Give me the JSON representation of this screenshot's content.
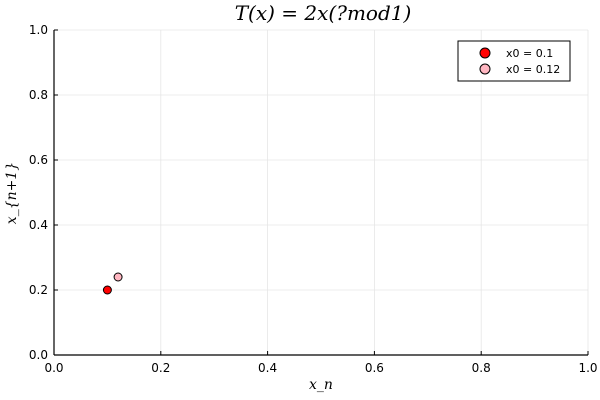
{
  "chart_data": {
    "type": "scatter",
    "title": "T(x) = 2x(?mod1)",
    "xlabel": "x_n",
    "ylabel": "x_{n+1}",
    "xlim": [
      0,
      1
    ],
    "ylim": [
      0,
      1
    ],
    "xticks": [
      0.0,
      0.2,
      0.4,
      0.6,
      0.8,
      1.0
    ],
    "yticks": [
      0.0,
      0.2,
      0.4,
      0.6,
      0.8,
      1.0
    ],
    "xtick_labels": [
      "0.0",
      "0.2",
      "0.4",
      "0.6",
      "0.8",
      "1.0"
    ],
    "ytick_labels": [
      "0.0",
      "0.2",
      "0.4",
      "0.6",
      "0.8",
      "1.0"
    ],
    "grid": true,
    "legend_position": "top-right",
    "series": [
      {
        "name": "x0 = 0.1",
        "color": "#ff0000",
        "points": [
          {
            "x": 0.1,
            "y": 0.2
          }
        ]
      },
      {
        "name": "x0 = 0.12",
        "color": "#ffb6c1",
        "points": [
          {
            "x": 0.12,
            "y": 0.24
          }
        ]
      }
    ]
  }
}
